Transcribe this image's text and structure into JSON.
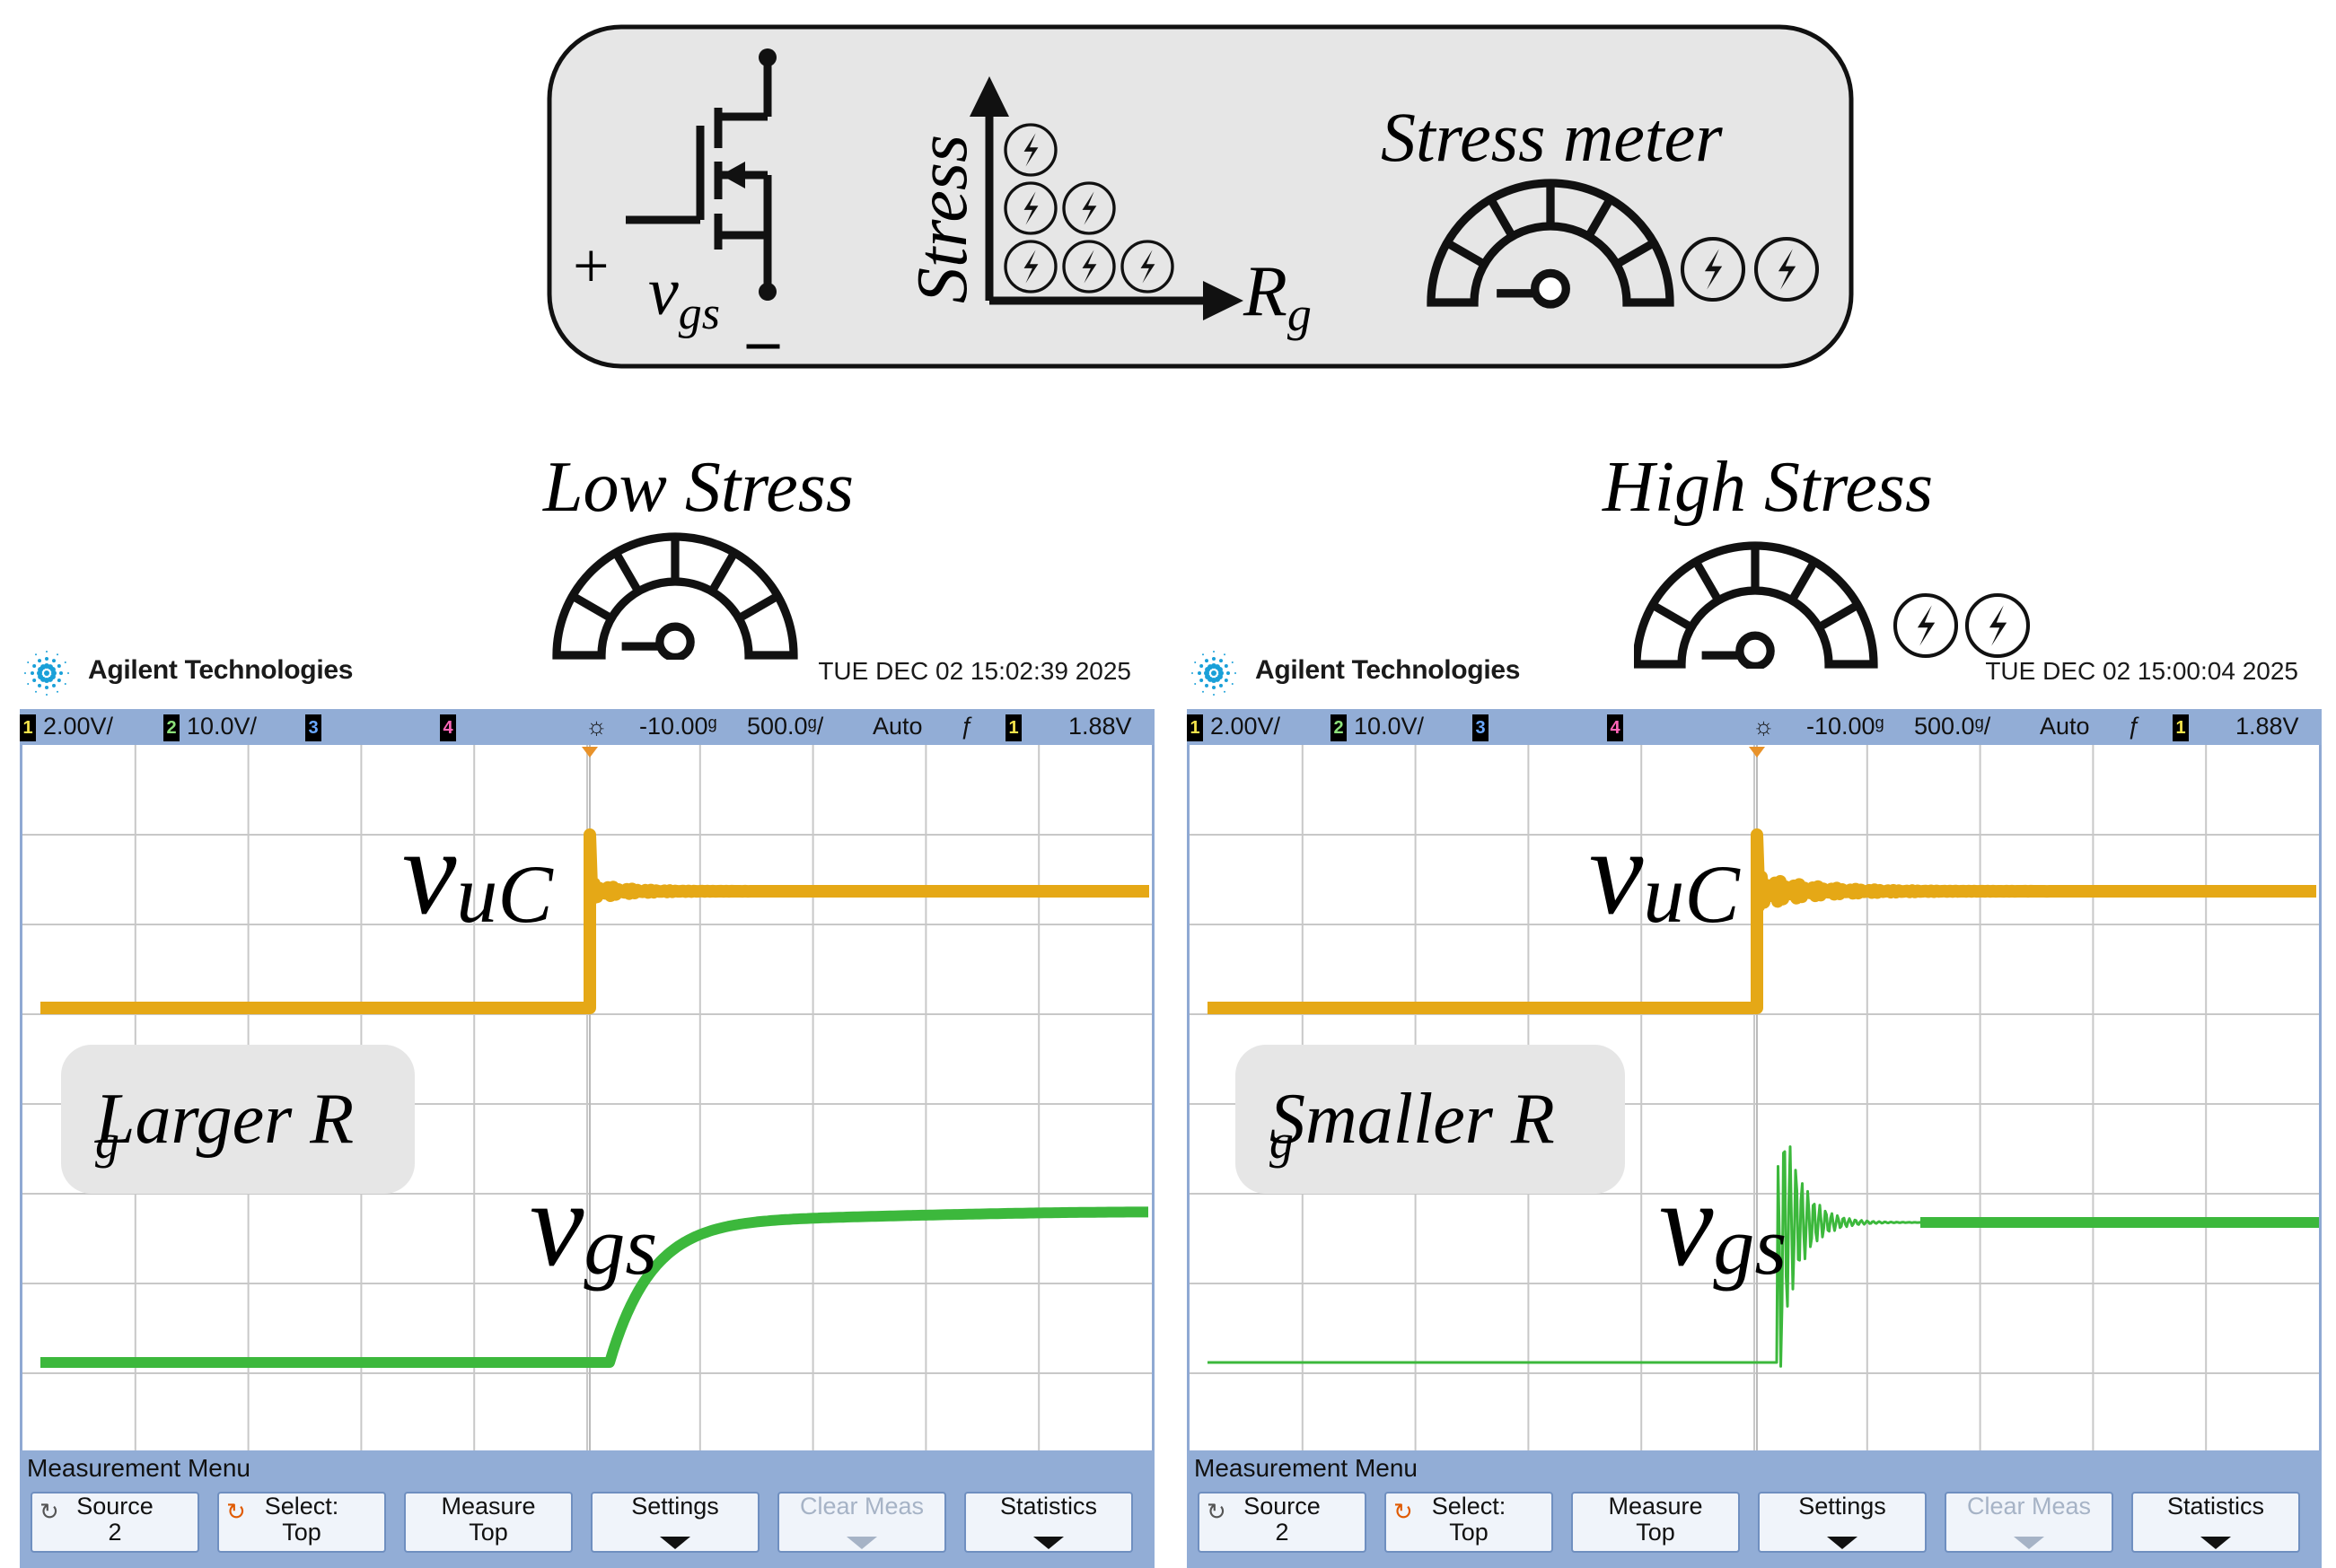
{
  "legend": {
    "vgs_plus": "+",
    "vgs_minus": "–",
    "vgs_symbol": "v",
    "vgs_sub": "gs",
    "stress_axis": "Stress",
    "rg_axis": "R",
    "rg_sub": "g",
    "stress_meter_title": "Stress meter"
  },
  "panels": [
    {
      "stress_title": "Low Stress",
      "stress_bolts": 0,
      "brand": "Agilent Technologies",
      "datetime": "TUE DEC 02 15:02:39 2025",
      "status": {
        "ch1": "1",
        "ch1_scale": "2.00V/",
        "ch2": "2",
        "ch2_scale": "10.0V/",
        "ch3": "3",
        "ch4": "4",
        "delay": "-10.00ᵍ",
        "timebase": "500.0ᵍ/",
        "mode": "Auto",
        "trig_ch": "1",
        "trig_level": "1.88V"
      },
      "trace1_label": "v",
      "trace1_sub": "uC",
      "trace2_label": "v",
      "trace2_sub": "gs",
      "rg_box_text": "Larger R",
      "rg_box_sub": "g",
      "menu_title": "Measurement Menu",
      "softkeys": [
        {
          "line1": "Source",
          "line2": "2",
          "icon": "↻",
          "arrow": false,
          "disabled": false
        },
        {
          "line1": "Select:",
          "line2": "Top",
          "icon": "↻",
          "arrow": false,
          "disabled": false
        },
        {
          "line1": "Measure",
          "line2": "Top",
          "icon": "",
          "arrow": false,
          "disabled": false
        },
        {
          "line1": "Settings",
          "line2": "",
          "icon": "",
          "arrow": true,
          "disabled": false
        },
        {
          "line1": "Clear Meas",
          "line2": "",
          "icon": "",
          "arrow": true,
          "disabled": true
        },
        {
          "line1": "Statistics",
          "line2": "",
          "icon": "",
          "arrow": true,
          "disabled": false
        }
      ]
    },
    {
      "stress_title": "High Stress",
      "stress_bolts": 2,
      "brand": "Agilent Technologies",
      "datetime": "TUE DEC 02 15:00:04 2025",
      "status": {
        "ch1": "1",
        "ch1_scale": "2.00V/",
        "ch2": "2",
        "ch2_scale": "10.0V/",
        "ch3": "3",
        "ch4": "4",
        "delay": "-10.00ᵍ",
        "timebase": "500.0ᵍ/",
        "mode": "Auto",
        "trig_ch": "1",
        "trig_level": "1.88V"
      },
      "trace1_label": "v",
      "trace1_sub": "uC",
      "trace2_label": "v",
      "trace2_sub": "gs",
      "rg_box_text": "Smaller  R",
      "rg_box_sub": "g",
      "menu_title": "Measurement Menu",
      "softkeys": [
        {
          "line1": "Source",
          "line2": "2",
          "icon": "↻",
          "arrow": false,
          "disabled": false
        },
        {
          "line1": "Select:",
          "line2": "Top",
          "icon": "↻",
          "arrow": false,
          "disabled": false
        },
        {
          "line1": "Measure",
          "line2": "Top",
          "icon": "",
          "arrow": false,
          "disabled": false
        },
        {
          "line1": "Settings",
          "line2": "",
          "icon": "",
          "arrow": true,
          "disabled": false
        },
        {
          "line1": "Clear Meas",
          "line2": "",
          "icon": "",
          "arrow": true,
          "disabled": true
        },
        {
          "line1": "Statistics",
          "line2": "",
          "icon": "",
          "arrow": true,
          "disabled": false
        }
      ]
    }
  ],
  "colors": {
    "trace1": "#e5a816",
    "trace2": "#3cb83c",
    "statusbar": "#92add6",
    "grid": "#c8c8c8",
    "legend_bg": "#e6e6e6"
  },
  "icons": {
    "mosfet": "mosfet-icon",
    "bolt": "lightning-bolt-icon",
    "meter": "stress-meter-icon",
    "brand": "agilent-logo-icon"
  }
}
